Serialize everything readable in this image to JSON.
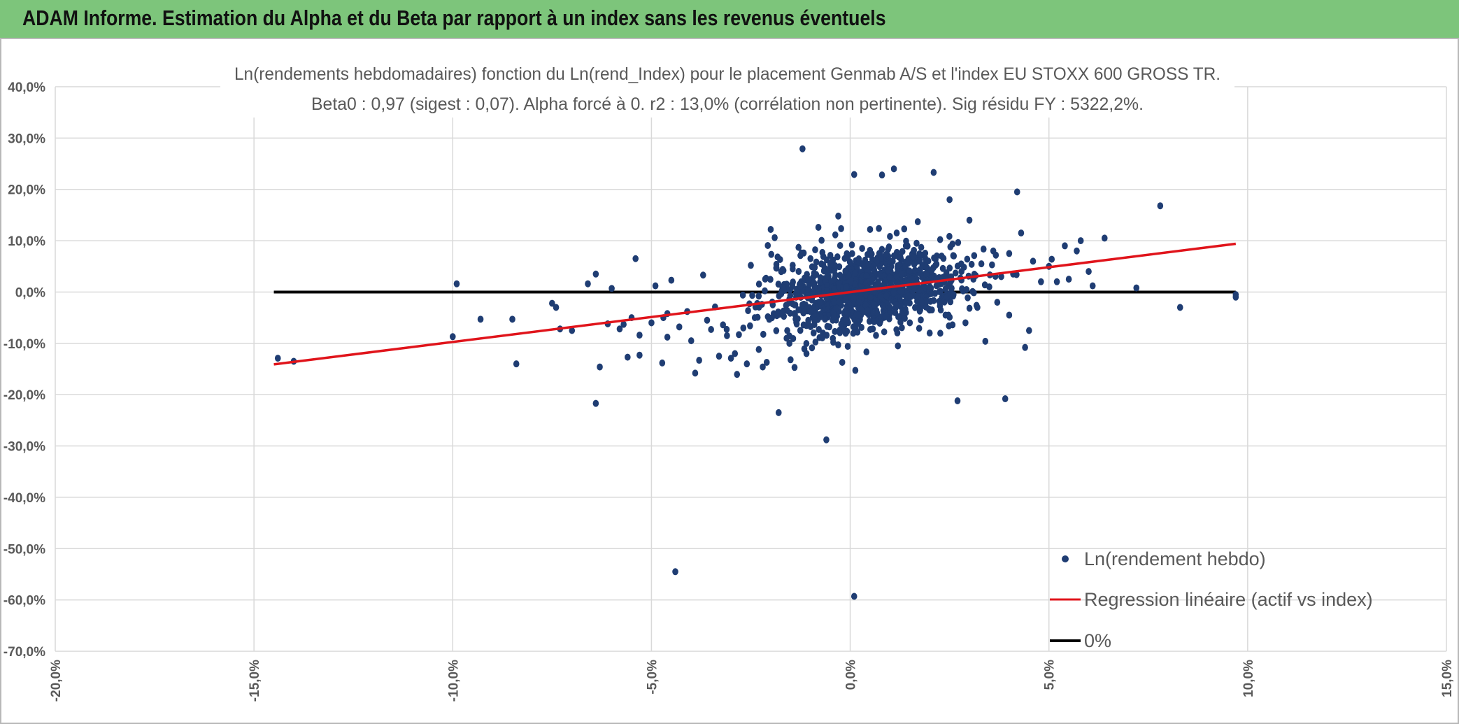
{
  "header": {
    "title": "ADAM Informe. Estimation du Alpha et du Beta par rapport à un index sans les revenus éventuels"
  },
  "colors": {
    "header_bg": "#7dc57b",
    "points": "#1f3d73",
    "regression": "#e0141b",
    "zero_line": "#000000",
    "grid": "#d9d9d9"
  },
  "chart_data": {
    "type": "scatter",
    "title_lines": [
      "Ln(rendements hebdomadaires) fonction du Ln(rend_Index) pour le placement Genmab A/S et l'index EU STOXX 600 GROSS TR.",
      "Beta0 : 0,97 (sigest : 0,07). Alpha forcé à 0. r2 : 13,0% (corrélation non pertinente). Sig résidu FY : 5322,2%."
    ],
    "xlim": [
      -0.2,
      0.15
    ],
    "ylim": [
      -0.7,
      0.4
    ],
    "x_ticks": [
      "-20,0%",
      "-15,0%",
      "-10,0%",
      "-5,0%",
      "0,0%",
      "5,0%",
      "10,0%",
      "15,0%"
    ],
    "y_ticks": [
      "40,0%",
      "30,0%",
      "20,0%",
      "10,0%",
      "0,0%",
      "-10,0%",
      "-20,0%",
      "-30,0%",
      "-40,0%",
      "-50,0%",
      "-60,0%",
      "-70,0%"
    ],
    "grid": true,
    "legend_position": "bottom-right",
    "series": [
      {
        "name": "Ln(rendement hebdo)",
        "kind": "scatter",
        "points": [
          [
            -0.144,
            -0.129
          ],
          [
            -0.14,
            -0.135
          ],
          [
            -0.1,
            -0.087
          ],
          [
            -0.099,
            0.016
          ],
          [
            -0.093,
            -0.053
          ],
          [
            -0.085,
            -0.053
          ],
          [
            -0.084,
            -0.14
          ],
          [
            -0.075,
            -0.022
          ],
          [
            -0.074,
            -0.03
          ],
          [
            -0.073,
            -0.072
          ],
          [
            -0.07,
            -0.075
          ],
          [
            -0.066,
            0.016
          ],
          [
            -0.064,
            0.035
          ],
          [
            -0.064,
            -0.217
          ],
          [
            -0.063,
            -0.146
          ],
          [
            -0.061,
            -0.062
          ],
          [
            -0.06,
            0.007
          ],
          [
            -0.058,
            -0.072
          ],
          [
            -0.057,
            -0.063
          ],
          [
            -0.056,
            -0.127
          ],
          [
            -0.055,
            -0.05
          ],
          [
            -0.054,
            0.065
          ],
          [
            -0.053,
            -0.123
          ],
          [
            -0.053,
            -0.084
          ],
          [
            -0.05,
            -0.06
          ],
          [
            -0.049,
            0.012
          ],
          [
            -0.047,
            -0.05
          ],
          [
            -0.046,
            -0.042
          ],
          [
            -0.046,
            -0.088
          ],
          [
            -0.045,
            0.023
          ],
          [
            -0.044,
            -0.545
          ],
          [
            -0.043,
            -0.068
          ],
          [
            -0.041,
            -0.038
          ],
          [
            -0.04,
            -0.095
          ],
          [
            -0.039,
            -0.158
          ],
          [
            -0.038,
            -0.133
          ],
          [
            -0.037,
            0.033
          ],
          [
            -0.036,
            -0.055
          ],
          [
            -0.035,
            -0.073
          ],
          [
            -0.034,
            -0.029
          ],
          [
            -0.033,
            -0.125
          ],
          [
            -0.032,
            -0.064
          ],
          [
            -0.031,
            -0.085
          ],
          [
            -0.03,
            -0.129
          ],
          [
            -0.029,
            -0.12
          ],
          [
            -0.028,
            -0.083
          ],
          [
            -0.027,
            -0.006
          ],
          [
            -0.026,
            -0.14
          ],
          [
            -0.025,
            0.052
          ],
          [
            -0.024,
            -0.05
          ],
          [
            -0.023,
            -0.112
          ],
          [
            -0.022,
            -0.146
          ],
          [
            -0.021,
            -0.137
          ],
          [
            -0.02,
            0.122
          ],
          [
            -0.019,
            0.106
          ],
          [
            -0.018,
            -0.235
          ],
          [
            -0.017,
            -0.04
          ],
          [
            -0.016,
            -0.09
          ],
          [
            -0.015,
            -0.132
          ],
          [
            -0.014,
            -0.147
          ],
          [
            -0.013,
            0.087
          ],
          [
            -0.012,
            0.279
          ],
          [
            -0.011,
            -0.12
          ],
          [
            -0.01,
            0.065
          ],
          [
            -0.009,
            -0.055
          ],
          [
            -0.008,
            0.126
          ],
          [
            -0.007,
            -0.087
          ],
          [
            -0.006,
            -0.288
          ],
          [
            -0.005,
            0.054
          ],
          [
            -0.004,
            -0.02
          ],
          [
            -0.003,
            0.148
          ],
          [
            -0.002,
            -0.137
          ],
          [
            -0.001,
            0.01
          ],
          [
            0.0,
            0.057
          ],
          [
            0.001,
            -0.593
          ],
          [
            0.001,
            0.229
          ],
          [
            0.002,
            -0.045
          ],
          [
            0.003,
            0.085
          ],
          [
            0.004,
            0.032
          ],
          [
            0.005,
            0.122
          ],
          [
            0.006,
            -0.058
          ],
          [
            0.007,
            0.02
          ],
          [
            0.008,
            0.228
          ],
          [
            0.009,
            0.073
          ],
          [
            0.01,
            -0.03
          ],
          [
            0.011,
            0.24
          ],
          [
            0.012,
            -0.105
          ],
          [
            0.013,
            0.035
          ],
          [
            0.014,
            0.09
          ],
          [
            0.015,
            -0.06
          ],
          [
            0.016,
            0.01
          ],
          [
            0.017,
            0.137
          ],
          [
            0.018,
            -0.02
          ],
          [
            0.019,
            0.05
          ],
          [
            0.02,
            -0.08
          ],
          [
            0.021,
            0.233
          ],
          [
            0.022,
            0.018
          ],
          [
            0.023,
            0.07
          ],
          [
            0.024,
            -0.045
          ],
          [
            0.025,
            0.18
          ],
          [
            0.026,
            -0.005
          ],
          [
            0.027,
            -0.212
          ],
          [
            0.028,
            0.04
          ],
          [
            0.029,
            -0.06
          ],
          [
            0.03,
            0.14
          ],
          [
            0.031,
            0.025
          ],
          [
            0.032,
            -0.03
          ],
          [
            0.033,
            0.055
          ],
          [
            0.034,
            -0.096
          ],
          [
            0.035,
            0.01
          ],
          [
            0.036,
            0.08
          ],
          [
            0.037,
            -0.02
          ],
          [
            0.038,
            0.03
          ],
          [
            0.039,
            -0.208
          ],
          [
            0.04,
            0.075
          ],
          [
            0.04,
            -0.045
          ],
          [
            0.041,
            0.035
          ],
          [
            0.042,
            0.195
          ],
          [
            0.043,
            0.115
          ],
          [
            0.044,
            -0.108
          ],
          [
            0.045,
            -0.075
          ],
          [
            0.046,
            0.06
          ],
          [
            0.048,
            0.02
          ],
          [
            0.05,
            0.05
          ],
          [
            0.052,
            0.02
          ],
          [
            0.054,
            0.09
          ],
          [
            0.055,
            0.025
          ],
          [
            0.057,
            0.08
          ],
          [
            0.058,
            0.1
          ],
          [
            0.06,
            0.04
          ],
          [
            0.061,
            0.012
          ],
          [
            0.064,
            0.105
          ],
          [
            0.072,
            0.008
          ],
          [
            0.078,
            0.168
          ],
          [
            0.083,
            -0.03
          ],
          [
            0.097,
            -0.01
          ],
          [
            0.097,
            -0.005
          ]
        ]
      },
      {
        "name": "Regression linéaire (actif vs index)",
        "kind": "line",
        "points": [
          [
            -0.145,
            -0.141
          ],
          [
            0.097,
            0.094
          ]
        ]
      },
      {
        "name": "0%",
        "kind": "line",
        "points": [
          [
            -0.145,
            0.0
          ],
          [
            0.097,
            0.0
          ]
        ]
      }
    ]
  }
}
